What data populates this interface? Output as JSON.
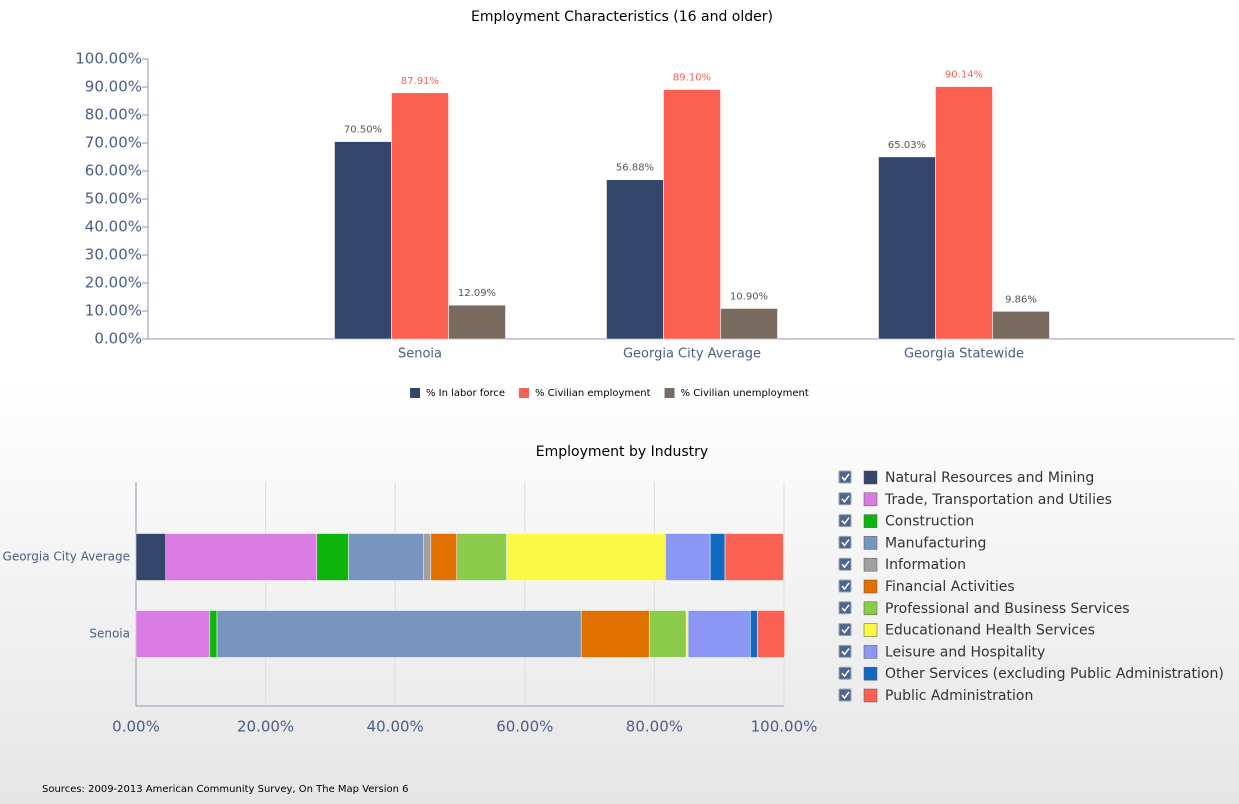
{
  "chart_data": [
    {
      "type": "bar",
      "title": "Employment Characteristics (16 and older)",
      "categories": [
        "Senoia",
        "Georgia City Average",
        "Georgia Statewide"
      ],
      "series": [
        {
          "name": "% In labor force",
          "color": "#34476b",
          "values": [
            70.5,
            56.88,
            65.03
          ],
          "value_labels": [
            "70.50%",
            "56.88%",
            "65.03%"
          ]
        },
        {
          "name": "% Civilian employment",
          "color": "#fa6152",
          "values": [
            87.91,
            89.1,
            90.14
          ],
          "value_labels": [
            "87.91%",
            "89.10%",
            "90.14%"
          ]
        },
        {
          "name": "% Civilian unemployment",
          "color": "#7a6b60",
          "values": [
            12.09,
            10.9,
            9.86
          ],
          "value_labels": [
            "12.09%",
            "10.90%",
            "9.86%"
          ]
        }
      ],
      "ylim": [
        0,
        100
      ],
      "yticks": [
        {
          "value": 0,
          "label": "0.00%"
        },
        {
          "value": 10,
          "label": "10.00%"
        },
        {
          "value": 20,
          "label": "20.00%"
        },
        {
          "value": 30,
          "label": "30.00%"
        },
        {
          "value": 40,
          "label": "40.00%"
        },
        {
          "value": 50,
          "label": "50.00%"
        },
        {
          "value": 60,
          "label": "60.00%"
        },
        {
          "value": 70,
          "label": "70.00%"
        },
        {
          "value": 80,
          "label": "80.00%"
        },
        {
          "value": 90,
          "label": "90.00%"
        },
        {
          "value": 100,
          "label": "100.00%"
        }
      ],
      "legend": "bottom"
    },
    {
      "type": "stacked-hbar",
      "title": "Employment by Industry",
      "categories": [
        "Georgia City Average",
        "Senoia"
      ],
      "series": [
        {
          "name": "Natural Resources and Mining",
          "color": "#34476b",
          "values": [
            4.6,
            0
          ]
        },
        {
          "name": "Trade, Transportation and Utilies",
          "color": "#d97be3",
          "values": [
            23.3,
            11.4
          ]
        },
        {
          "name": "Construction",
          "color": "#0cb40c",
          "values": [
            4.9,
            1.1
          ]
        },
        {
          "name": "Manufacturing",
          "color": "#7795bf",
          "values": [
            11.6,
            56.2
          ]
        },
        {
          "name": "Information",
          "color": "#a0a0a0",
          "values": [
            1.1,
            0
          ]
        },
        {
          "name": "Financial Activities",
          "color": "#e07000",
          "values": [
            4.0,
            10.5
          ]
        },
        {
          "name": "Professional and Business Services",
          "color": "#8ccc4c",
          "values": [
            7.7,
            5.7
          ]
        },
        {
          "name": "Educationand Health Services",
          "color": "#fafa46",
          "values": [
            24.5,
            0.3
          ]
        },
        {
          "name": "Leisure and Hospitality",
          "color": "#8c96f5",
          "values": [
            6.9,
            9.6
          ]
        },
        {
          "name": "Other Services (excluding Public Administration)",
          "color": "#1368c2",
          "values": [
            2.3,
            1.1
          ]
        },
        {
          "name": "Public Administration",
          "color": "#fa6152",
          "values": [
            9.0,
            4.2
          ]
        }
      ],
      "xlim": [
        0,
        100
      ],
      "xticks": [
        {
          "value": 0,
          "label": "0.00%"
        },
        {
          "value": 20,
          "label": "20.00%"
        },
        {
          "value": 40,
          "label": "40.00%"
        },
        {
          "value": 60,
          "label": "60.00%"
        },
        {
          "value": 80,
          "label": "80.00%"
        },
        {
          "value": 100,
          "label": "100.00%"
        }
      ],
      "grid": true,
      "legend": "right"
    }
  ],
  "sources": "Sources: 2009-2013 American Community Survey, On The Map Version 6"
}
